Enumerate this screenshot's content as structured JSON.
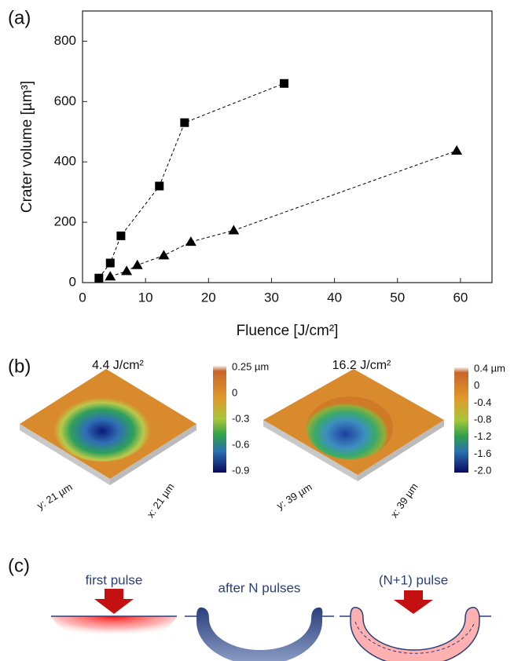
{
  "panel_labels": [
    "(a)",
    "(b)",
    "(c)"
  ],
  "chart_data": {
    "type": "line",
    "x_label": "Fluence [J/cm²]",
    "y_label": "Crater volume [µm³]",
    "xlim": [
      0,
      65
    ],
    "xticks": [
      0,
      10,
      20,
      30,
      40,
      50,
      60
    ],
    "ylim": [
      0,
      900
    ],
    "yticks": [
      0,
      200,
      400,
      600,
      800
    ],
    "line_style": "dashed",
    "series": [
      {
        "marker": "square",
        "color": "#000000",
        "x": [
          2.6,
          4.4,
          6.1,
          12.2,
          16.2,
          32
        ],
        "values": [
          15,
          65,
          155,
          320,
          530,
          660
        ]
      },
      {
        "marker": "triangle",
        "color": "#000000",
        "x": [
          4.4,
          7,
          8.7,
          12.9,
          17.2,
          24,
          59.4
        ],
        "values": [
          20,
          38,
          58,
          90,
          135,
          173,
          437
        ]
      }
    ]
  },
  "panel_b": {
    "images": [
      {
        "title": "4.4 J/cm²",
        "x_axis": "x: 21 µm",
        "y_axis": "y: 21 µm",
        "colorbar_labels": [
          "0.25 µm",
          "0",
          "-0.3",
          "-0.6",
          "-0.9"
        ]
      },
      {
        "title": "16.2 J/cm²",
        "x_axis": "x: 39 µm",
        "y_axis": "y: 39 µm",
        "colorbar_labels": [
          "0.4 µm",
          "0",
          "-0.4",
          "-0.8",
          "-1.2",
          "-1.6",
          "-2.0"
        ]
      }
    ]
  },
  "panel_c": {
    "labels": [
      "first pulse",
      "after N pulses",
      "(N+1) pulse"
    ]
  }
}
